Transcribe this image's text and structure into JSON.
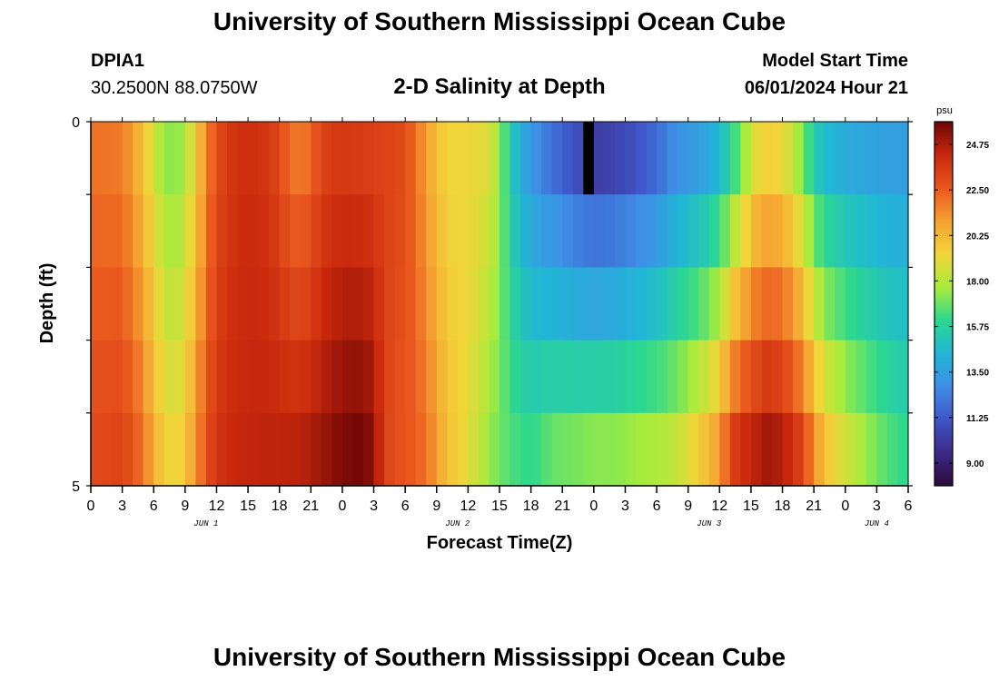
{
  "header": {
    "title": "University of Southern Mississippi Ocean Cube",
    "station_id": "DPIA1",
    "coordinates": "30.2500N  88.0750W",
    "plot_title": "2-D Salinity at Depth",
    "model_start_label": "Model Start Time",
    "model_start_value": "06/01/2024 Hour 21"
  },
  "footer": {
    "title": "University of Southern Mississippi Ocean Cube"
  },
  "colors": {
    "scale": [
      "#2c0a3a",
      "#3d2a86",
      "#3f55c8",
      "#3f8ee6",
      "#22b6d6",
      "#2cd88f",
      "#a8ec3c",
      "#f2d53a",
      "#f5a132",
      "#e9561e",
      "#c8280c",
      "#6e0606"
    ],
    "missing": "#000000"
  },
  "chart_data": {
    "type": "heatmap",
    "title": "2-D Salinity at Depth",
    "xlabel": "Forecast Time(Z)",
    "ylabel": "Depth (ft)",
    "x_start_hour": 0,
    "x_end_hour": 78,
    "x_step_hours": 1,
    "x_tick_labels": [
      "0",
      "3",
      "6",
      "9",
      "12",
      "15",
      "18",
      "21",
      "0",
      "3",
      "6",
      "9",
      "12",
      "15",
      "18",
      "21",
      "0",
      "3",
      "6",
      "9",
      "12",
      "15",
      "18",
      "21",
      "0",
      "3",
      "6"
    ],
    "x_tick_hours": [
      0,
      3,
      6,
      9,
      12,
      15,
      18,
      21,
      24,
      27,
      30,
      33,
      36,
      39,
      42,
      45,
      48,
      51,
      54,
      57,
      60,
      63,
      66,
      69,
      72,
      75,
      78
    ],
    "date_labels": [
      {
        "label": "JUN 1",
        "hour": 11
      },
      {
        "label": "JUN 2",
        "hour": 35
      },
      {
        "label": "JUN 3",
        "hour": 59
      },
      {
        "label": "JUN 4",
        "hour": 75
      }
    ],
    "y_tick_labels": [
      "0",
      "5"
    ],
    "y_range": [
      0,
      5
    ],
    "depth_levels": [
      0,
      1,
      2,
      3,
      4,
      5
    ],
    "colorbar": {
      "unit": "psu",
      "min": 7.875,
      "max": 25.875,
      "tick_labels": [
        "9.00",
        "11.25",
        "13.50",
        "15.75",
        "18.00",
        "20.25",
        "22.50",
        "24.75"
      ],
      "tick_values": [
        9.0,
        11.25,
        13.5,
        15.75,
        18.0,
        20.25,
        22.5,
        24.75
      ]
    },
    "salinity_profile_surface": [
      [
        0,
        22.0
      ],
      [
        3,
        21.8
      ],
      [
        5,
        20.0
      ],
      [
        6,
        18.5
      ],
      [
        7,
        17.5
      ],
      [
        8,
        17.2
      ],
      [
        9,
        17.8
      ],
      [
        10,
        19.5
      ],
      [
        11,
        21.5
      ],
      [
        12,
        23.0
      ],
      [
        14,
        24.0
      ],
      [
        16,
        24.0
      ],
      [
        18,
        23.2
      ],
      [
        19,
        22.0
      ],
      [
        20,
        21.8
      ],
      [
        21,
        22.2
      ],
      [
        22,
        23.3
      ],
      [
        24,
        23.7
      ],
      [
        26,
        23.5
      ],
      [
        28,
        23.3
      ],
      [
        30,
        23.0
      ],
      [
        31,
        22.0
      ],
      [
        32,
        21.0
      ],
      [
        33,
        20.0
      ],
      [
        34,
        19.3
      ],
      [
        36,
        19.3
      ],
      [
        38,
        18.8
      ],
      [
        39,
        17.5
      ],
      [
        40,
        15.5
      ],
      [
        41,
        14.0
      ],
      [
        43,
        12.5
      ],
      [
        46,
        11.0
      ],
      [
        48,
        10.3
      ],
      [
        50,
        10.5
      ],
      [
        52,
        11.0
      ],
      [
        54,
        11.8
      ],
      [
        56,
        13.0
      ],
      [
        58,
        13.5
      ],
      [
        60,
        14.5
      ],
      [
        62,
        17.0
      ],
      [
        63,
        18.5
      ],
      [
        64,
        19.5
      ],
      [
        66,
        19.3
      ],
      [
        67,
        18.3
      ],
      [
        68,
        17.0
      ],
      [
        69,
        15.5
      ],
      [
        70,
        14.6
      ],
      [
        72,
        14.0
      ],
      [
        76,
        13.5
      ],
      [
        78,
        13.5
      ]
    ],
    "salinity_profile_bottom": [
      [
        0,
        23.0
      ],
      [
        3,
        23.3
      ],
      [
        5,
        22.0
      ],
      [
        6,
        20.5
      ],
      [
        7,
        19.5
      ],
      [
        8,
        19.0
      ],
      [
        9,
        19.8
      ],
      [
        10,
        21.2
      ],
      [
        11,
        22.8
      ],
      [
        12,
        23.8
      ],
      [
        14,
        24.3
      ],
      [
        16,
        24.4
      ],
      [
        18,
        24.4
      ],
      [
        20,
        24.5
      ],
      [
        22,
        25.0
      ],
      [
        24,
        25.6
      ],
      [
        26,
        25.8
      ],
      [
        27,
        25.2
      ],
      [
        28,
        23.5
      ],
      [
        29,
        22.8
      ],
      [
        30,
        22.8
      ],
      [
        32,
        22.0
      ],
      [
        33,
        21.0
      ],
      [
        34,
        20.0
      ],
      [
        36,
        19.0
      ],
      [
        38,
        17.5
      ],
      [
        40,
        16.5
      ],
      [
        42,
        16.0
      ],
      [
        44,
        16.8
      ],
      [
        46,
        17.0
      ],
      [
        48,
        17.3
      ],
      [
        50,
        17.3
      ],
      [
        52,
        17.6
      ],
      [
        54,
        17.8
      ],
      [
        56,
        18.3
      ],
      [
        58,
        19.5
      ],
      [
        60,
        21.0
      ],
      [
        61,
        23.0
      ],
      [
        62,
        24.0
      ],
      [
        63,
        24.2
      ],
      [
        64,
        24.8
      ],
      [
        65,
        25.0
      ],
      [
        66,
        24.5
      ],
      [
        67,
        24.0
      ],
      [
        68,
        23.0
      ],
      [
        70,
        20.0
      ],
      [
        72,
        18.5
      ],
      [
        74,
        17.5
      ],
      [
        76,
        16.5
      ],
      [
        78,
        16.0
      ]
    ],
    "missing_cells": [
      {
        "hour": 47,
        "depth_index": 0
      }
    ]
  }
}
